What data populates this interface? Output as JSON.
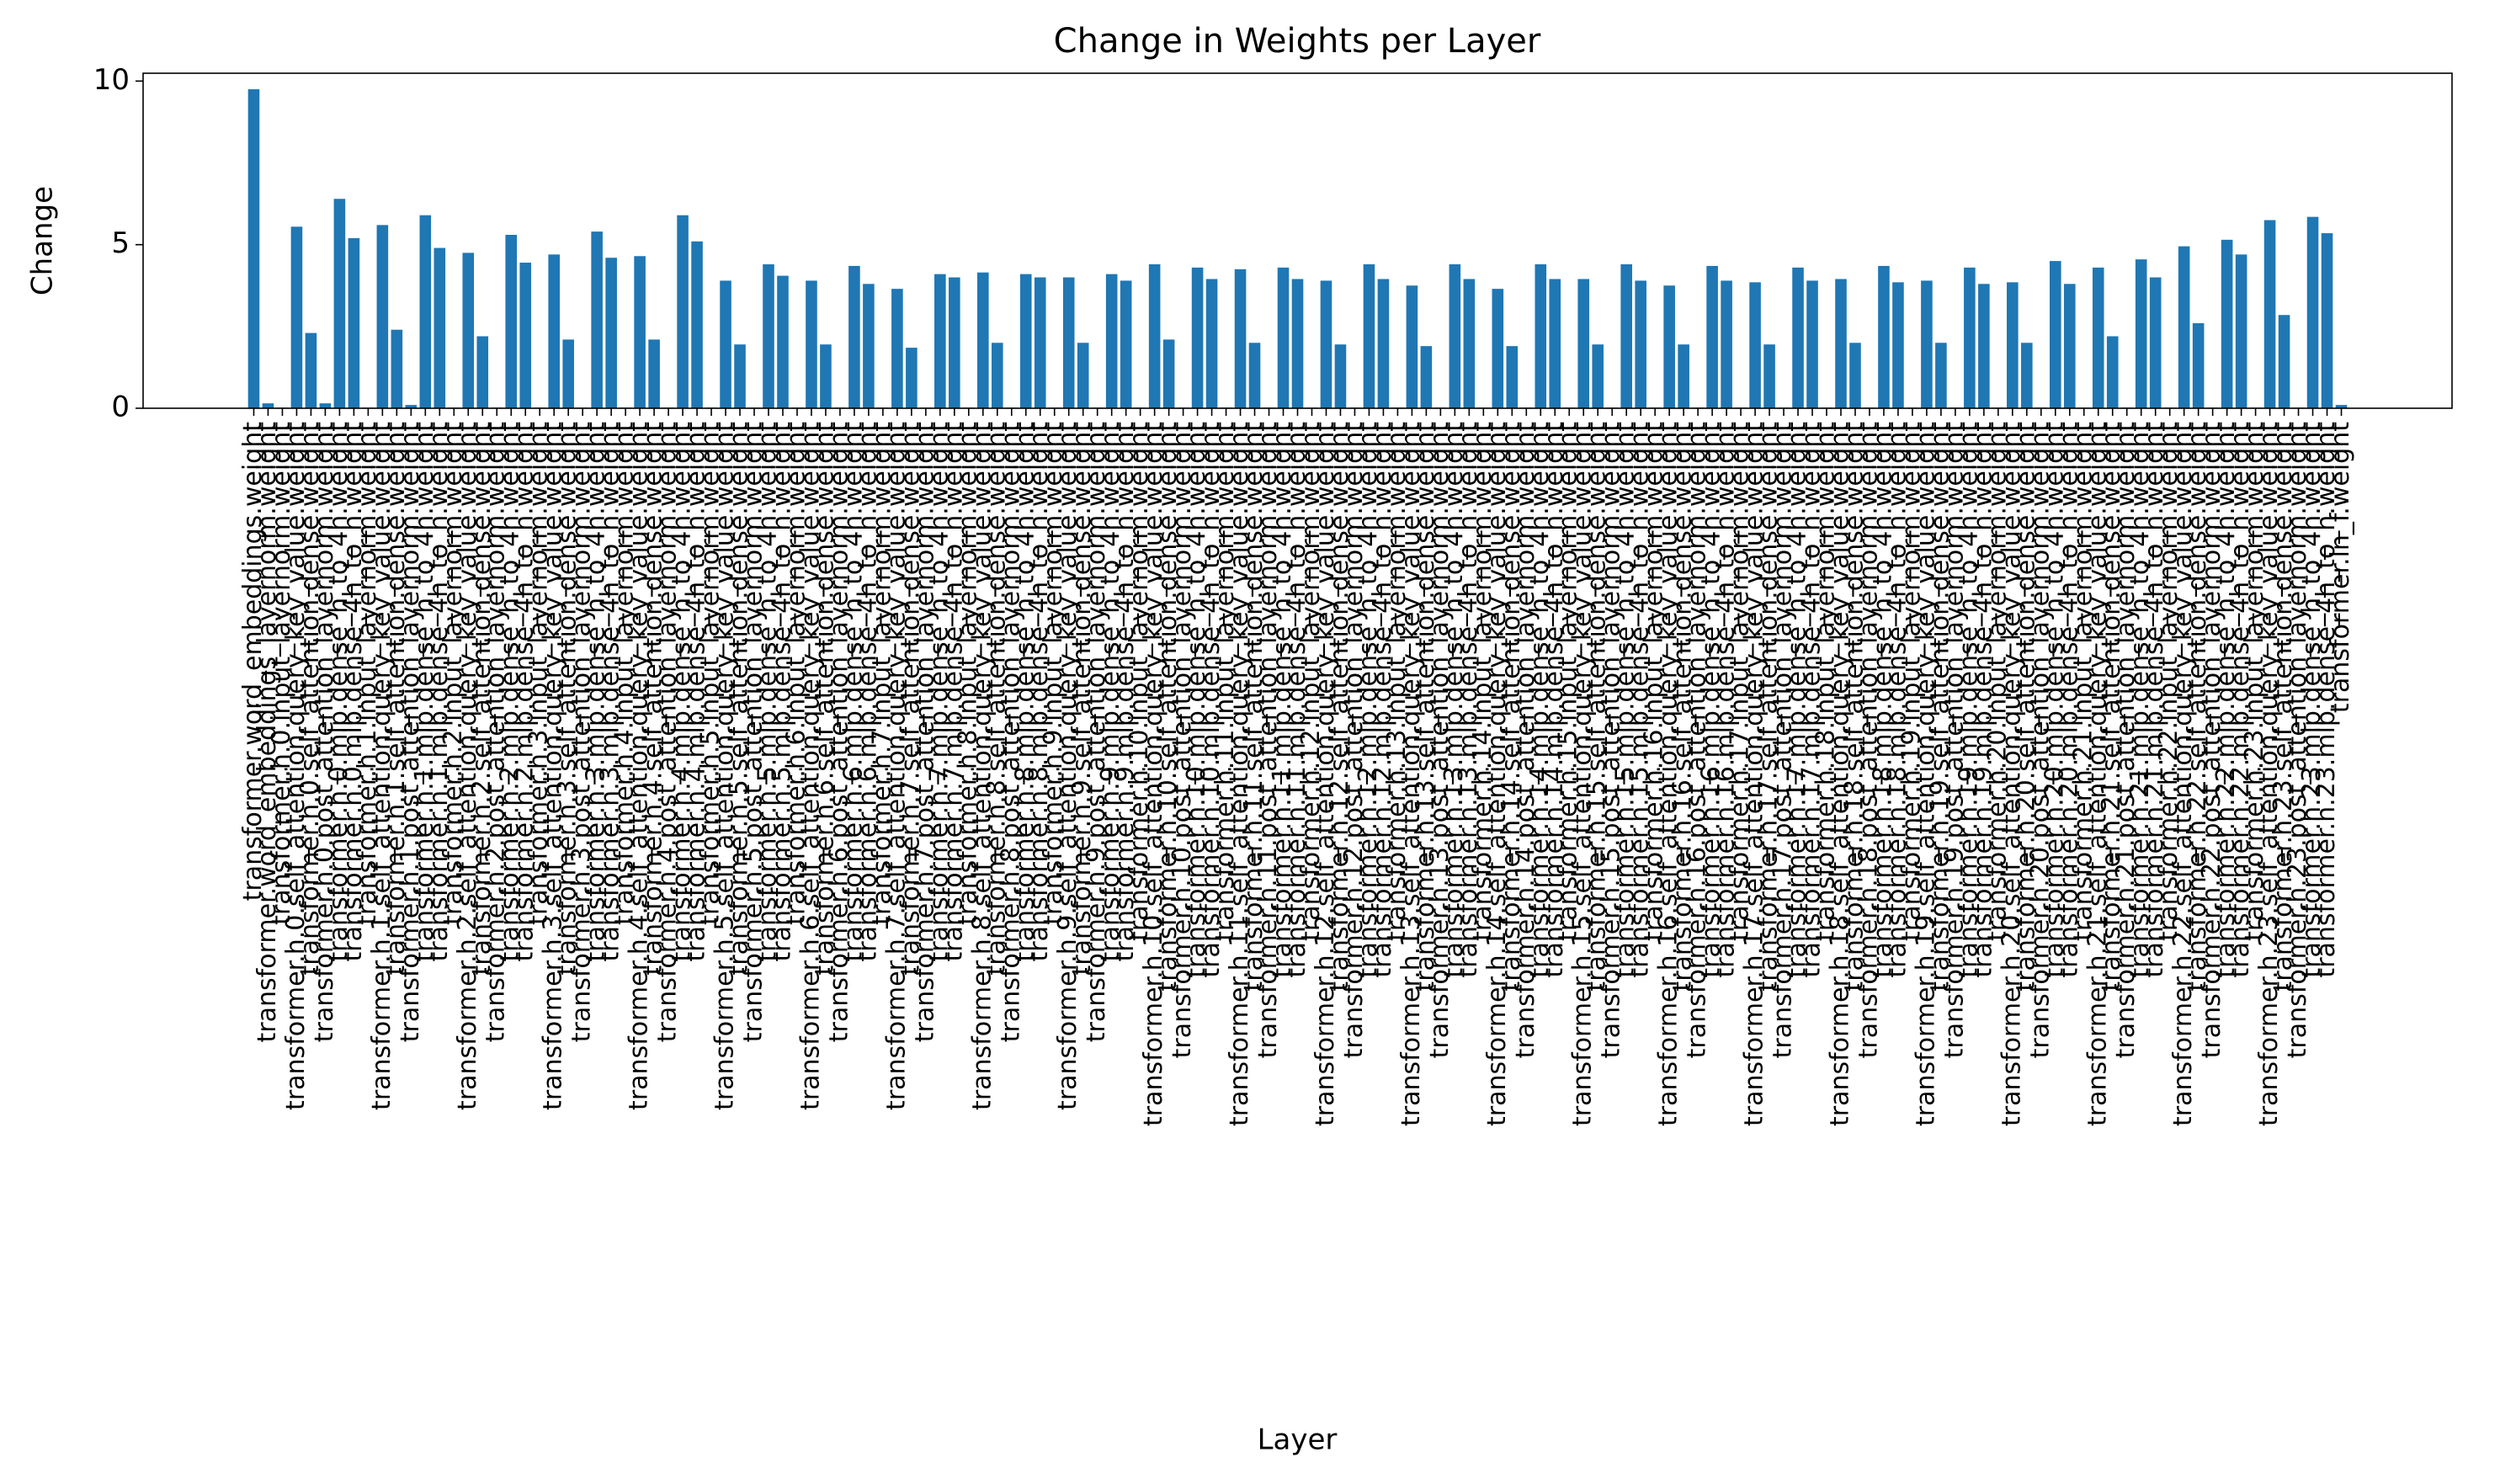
{
  "chart_data": {
    "type": "bar",
    "title": "Change in Weights per Layer",
    "x_label": "Layer",
    "y_label": "Change",
    "color": "#1f77b4",
    "categories": [
      "transformer.word_embeddings.weight",
      "transformer.word_embeddings_layernorm.weight",
      "transformer.h.0.input_layernorm.weight",
      "transformer.h.0.self_attention.query_key_value.weight",
      "transformer.h.0.self_attention.dense.weight",
      "transformer.h.0.post_attention_layernorm.weight",
      "transformer.h.0.mlp.dense_h_to_4h.weight",
      "transformer.h.0.mlp.dense_4h_to_h.weight",
      "transformer.h.1.input_layernorm.weight",
      "transformer.h.1.self_attention.query_key_value.weight",
      "transformer.h.1.self_attention.dense.weight",
      "transformer.h.1.post_attention_layernorm.weight",
      "transformer.h.1.mlp.dense_h_to_4h.weight",
      "transformer.h.1.mlp.dense_4h_to_h.weight",
      "transformer.h.2.input_layernorm.weight",
      "transformer.h.2.self_attention.query_key_value.weight",
      "transformer.h.2.self_attention.dense.weight",
      "transformer.h.2.post_attention_layernorm.weight",
      "transformer.h.2.mlp.dense_h_to_4h.weight",
      "transformer.h.2.mlp.dense_4h_to_h.weight",
      "transformer.h.3.input_layernorm.weight",
      "transformer.h.3.self_attention.query_key_value.weight",
      "transformer.h.3.self_attention.dense.weight",
      "transformer.h.3.post_attention_layernorm.weight",
      "transformer.h.3.mlp.dense_h_to_4h.weight",
      "transformer.h.3.mlp.dense_4h_to_h.weight",
      "transformer.h.4.input_layernorm.weight",
      "transformer.h.4.self_attention.query_key_value.weight",
      "transformer.h.4.self_attention.dense.weight",
      "transformer.h.4.post_attention_layernorm.weight",
      "transformer.h.4.mlp.dense_h_to_4h.weight",
      "transformer.h.4.mlp.dense_4h_to_h.weight",
      "transformer.h.5.input_layernorm.weight",
      "transformer.h.5.self_attention.query_key_value.weight",
      "transformer.h.5.self_attention.dense.weight",
      "transformer.h.5.post_attention_layernorm.weight",
      "transformer.h.5.mlp.dense_h_to_4h.weight",
      "transformer.h.5.mlp.dense_4h_to_h.weight",
      "transformer.h.6.input_layernorm.weight",
      "transformer.h.6.self_attention.query_key_value.weight",
      "transformer.h.6.self_attention.dense.weight",
      "transformer.h.6.post_attention_layernorm.weight",
      "transformer.h.6.mlp.dense_h_to_4h.weight",
      "transformer.h.6.mlp.dense_4h_to_h.weight",
      "transformer.h.7.input_layernorm.weight",
      "transformer.h.7.self_attention.query_key_value.weight",
      "transformer.h.7.self_attention.dense.weight",
      "transformer.h.7.post_attention_layernorm.weight",
      "transformer.h.7.mlp.dense_h_to_4h.weight",
      "transformer.h.7.mlp.dense_4h_to_h.weight",
      "transformer.h.8.input_layernorm.weight",
      "transformer.h.8.self_attention.query_key_value.weight",
      "transformer.h.8.self_attention.dense.weight",
      "transformer.h.8.post_attention_layernorm.weight",
      "transformer.h.8.mlp.dense_h_to_4h.weight",
      "transformer.h.8.mlp.dense_4h_to_h.weight",
      "transformer.h.9.input_layernorm.weight",
      "transformer.h.9.self_attention.query_key_value.weight",
      "transformer.h.9.self_attention.dense.weight",
      "transformer.h.9.post_attention_layernorm.weight",
      "transformer.h.9.mlp.dense_h_to_4h.weight",
      "transformer.h.9.mlp.dense_4h_to_h.weight",
      "transformer.h.10.input_layernorm.weight",
      "transformer.h.10.self_attention.query_key_value.weight",
      "transformer.h.10.self_attention.dense.weight",
      "transformer.h.10.post_attention_layernorm.weight",
      "transformer.h.10.mlp.dense_h_to_4h.weight",
      "transformer.h.10.mlp.dense_4h_to_h.weight",
      "transformer.h.11.input_layernorm.weight",
      "transformer.h.11.self_attention.query_key_value.weight",
      "transformer.h.11.self_attention.dense.weight",
      "transformer.h.11.post_attention_layernorm.weight",
      "transformer.h.11.mlp.dense_h_to_4h.weight",
      "transformer.h.11.mlp.dense_4h_to_h.weight",
      "transformer.h.12.input_layernorm.weight",
      "transformer.h.12.self_attention.query_key_value.weight",
      "transformer.h.12.self_attention.dense.weight",
      "transformer.h.12.post_attention_layernorm.weight",
      "transformer.h.12.mlp.dense_h_to_4h.weight",
      "transformer.h.12.mlp.dense_4h_to_h.weight",
      "transformer.h.13.input_layernorm.weight",
      "transformer.h.13.self_attention.query_key_value.weight",
      "transformer.h.13.self_attention.dense.weight",
      "transformer.h.13.post_attention_layernorm.weight",
      "transformer.h.13.mlp.dense_h_to_4h.weight",
      "transformer.h.13.mlp.dense_4h_to_h.weight",
      "transformer.h.14.input_layernorm.weight",
      "transformer.h.14.self_attention.query_key_value.weight",
      "transformer.h.14.self_attention.dense.weight",
      "transformer.h.14.post_attention_layernorm.weight",
      "transformer.h.14.mlp.dense_h_to_4h.weight",
      "transformer.h.14.mlp.dense_4h_to_h.weight",
      "transformer.h.15.input_layernorm.weight",
      "transformer.h.15.self_attention.query_key_value.weight",
      "transformer.h.15.self_attention.dense.weight",
      "transformer.h.15.post_attention_layernorm.weight",
      "transformer.h.15.mlp.dense_h_to_4h.weight",
      "transformer.h.15.mlp.dense_4h_to_h.weight",
      "transformer.h.16.input_layernorm.weight",
      "transformer.h.16.self_attention.query_key_value.weight",
      "transformer.h.16.self_attention.dense.weight",
      "transformer.h.16.post_attention_layernorm.weight",
      "transformer.h.16.mlp.dense_h_to_4h.weight",
      "transformer.h.16.mlp.dense_4h_to_h.weight",
      "transformer.h.17.input_layernorm.weight",
      "transformer.h.17.self_attention.query_key_value.weight",
      "transformer.h.17.self_attention.dense.weight",
      "transformer.h.17.post_attention_layernorm.weight",
      "transformer.h.17.mlp.dense_h_to_4h.weight",
      "transformer.h.17.mlp.dense_4h_to_h.weight",
      "transformer.h.18.input_layernorm.weight",
      "transformer.h.18.self_attention.query_key_value.weight",
      "transformer.h.18.self_attention.dense.weight",
      "transformer.h.18.post_attention_layernorm.weight",
      "transformer.h.18.mlp.dense_h_to_4h.weight",
      "transformer.h.18.mlp.dense_4h_to_h.weight",
      "transformer.h.19.input_layernorm.weight",
      "transformer.h.19.self_attention.query_key_value.weight",
      "transformer.h.19.self_attention.dense.weight",
      "transformer.h.19.post_attention_layernorm.weight",
      "transformer.h.19.mlp.dense_h_to_4h.weight",
      "transformer.h.19.mlp.dense_4h_to_h.weight",
      "transformer.h.20.input_layernorm.weight",
      "transformer.h.20.self_attention.query_key_value.weight",
      "transformer.h.20.self_attention.dense.weight",
      "transformer.h.20.post_attention_layernorm.weight",
      "transformer.h.20.mlp.dense_h_to_4h.weight",
      "transformer.h.20.mlp.dense_4h_to_h.weight",
      "transformer.h.21.input_layernorm.weight",
      "transformer.h.21.self_attention.query_key_value.weight",
      "transformer.h.21.self_attention.dense.weight",
      "transformer.h.21.post_attention_layernorm.weight",
      "transformer.h.21.mlp.dense_h_to_4h.weight",
      "transformer.h.21.mlp.dense_4h_to_h.weight",
      "transformer.h.22.input_layernorm.weight",
      "transformer.h.22.self_attention.query_key_value.weight",
      "transformer.h.22.self_attention.dense.weight",
      "transformer.h.22.post_attention_layernorm.weight",
      "transformer.h.22.mlp.dense_h_to_4h.weight",
      "transformer.h.22.mlp.dense_4h_to_h.weight",
      "transformer.h.23.input_layernorm.weight",
      "transformer.h.23.self_attention.query_key_value.weight",
      "transformer.h.23.self_attention.dense.weight",
      "transformer.h.23.post_attention_layernorm.weight",
      "transformer.h.23.mlp.dense_h_to_4h.weight",
      "transformer.h.23.mlp.dense_4h_to_h.weight",
      "transformer.ln_f.weight"
    ],
    "values": [
      9.75,
      0.15,
      0.02,
      5.55,
      2.3,
      0.15,
      6.4,
      5.2,
      0.02,
      5.6,
      2.4,
      0.1,
      5.9,
      4.9,
      0.02,
      4.75,
      2.2,
      0.02,
      5.3,
      4.45,
      0.02,
      4.7,
      2.1,
      0.02,
      5.4,
      4.6,
      0.02,
      4.65,
      2.1,
      0.02,
      5.9,
      5.1,
      0.02,
      3.9,
      1.95,
      0.02,
      4.4,
      4.05,
      0.02,
      3.9,
      1.95,
      0.02,
      4.35,
      3.8,
      0.02,
      3.65,
      1.85,
      0.02,
      4.1,
      4.0,
      0.02,
      4.15,
      2.0,
      0.02,
      4.1,
      4.0,
      0.02,
      4.0,
      2.0,
      0.02,
      4.1,
      3.9,
      0.02,
      4.4,
      2.1,
      0.02,
      4.3,
      3.95,
      0.02,
      4.25,
      2.0,
      0.02,
      4.3,
      3.95,
      0.02,
      3.9,
      1.95,
      0.02,
      4.4,
      3.95,
      0.02,
      3.75,
      1.9,
      0.02,
      4.4,
      3.95,
      0.02,
      3.65,
      1.9,
      0.02,
      4.4,
      3.95,
      0.02,
      3.95,
      1.95,
      0.02,
      4.4,
      3.9,
      0.02,
      3.75,
      1.95,
      0.02,
      4.35,
      3.9,
      0.02,
      3.85,
      1.95,
      0.02,
      4.3,
      3.9,
      0.02,
      3.95,
      2.0,
      0.02,
      4.35,
      3.85,
      0.02,
      3.9,
      2.0,
      0.02,
      4.3,
      3.8,
      0.02,
      3.85,
      2.0,
      0.02,
      4.5,
      3.8,
      0.02,
      4.3,
      2.2,
      0.02,
      4.55,
      4.0,
      0.02,
      4.95,
      2.6,
      0.02,
      5.15,
      4.7,
      0.02,
      5.75,
      2.85,
      0.02,
      5.85,
      5.35,
      0.1
    ],
    "ylim": [
      0,
      10.24
    ],
    "yticks": [
      0,
      5,
      10
    ]
  }
}
